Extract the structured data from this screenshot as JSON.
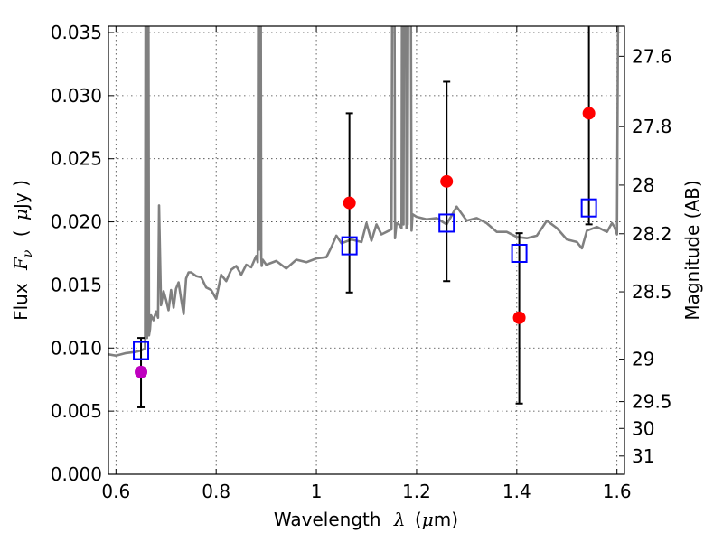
{
  "chart_data": {
    "type": "scatter",
    "xlabel_prefix": "Wavelength",
    "xlabel_symbol": "λ",
    "xlabel_unit_open": "(",
    "xlabel_unit_mu": "μ",
    "xlabel_unit_rest": "m)",
    "ylabel_prefix": "Flux",
    "ylabel_symbol": "F",
    "ylabel_sub": "ν",
    "ylabel_unit_open": "(",
    "ylabel_unit_mu": "μ",
    "ylabel_unit_rest": "Jy )",
    "y2label": "Magnitude (AB)",
    "xlim": [
      0.585,
      1.615
    ],
    "ylim": [
      0.0,
      0.0355
    ],
    "xticks": [
      0.6,
      0.8,
      1.0,
      1.2,
      1.4,
      1.6
    ],
    "xtick_labels": [
      "0.6",
      "0.8",
      "1",
      "1.2",
      "1.4",
      "1.6"
    ],
    "yticks": [
      0.0,
      0.005,
      0.01,
      0.015,
      0.02,
      0.025,
      0.03,
      0.035
    ],
    "ytick_labels": [
      "0.000",
      "0.005",
      "0.010",
      "0.015",
      "0.020",
      "0.025",
      "0.030",
      "0.035"
    ],
    "y2ticks": [
      27.6,
      27.8,
      28.0,
      28.2,
      28.5,
      29.0,
      29.5,
      30.0,
      31.0
    ],
    "y2tick_labels": [
      "27.6",
      "27.8",
      "28",
      "28.2",
      "28.5",
      "29",
      "29.5",
      "30",
      "31"
    ],
    "grid": true,
    "colors": {
      "spectrum": "#808080",
      "observed": "#ff0000",
      "observed_first": "#bf00bf",
      "model": "#0000ff",
      "errorbar": "#000000"
    },
    "observed": [
      {
        "x": 0.65,
        "y": 0.0081,
        "yerr_low": 0.0053,
        "yerr_high": 0.0108
      },
      {
        "x": 1.066,
        "y": 0.0215,
        "yerr_low": 0.0144,
        "yerr_high": 0.0286
      },
      {
        "x": 1.26,
        "y": 0.0232,
        "yerr_low": 0.0153,
        "yerr_high": 0.0311
      },
      {
        "x": 1.405,
        "y": 0.0124,
        "yerr_low": 0.0056,
        "yerr_high": 0.0191
      },
      {
        "x": 1.544,
        "y": 0.0286,
        "yerr_low": 0.0198,
        "yerr_high": 0.0374
      }
    ],
    "model_points": [
      {
        "x": 0.65,
        "y": 0.0098
      },
      {
        "x": 1.066,
        "y": 0.0181
      },
      {
        "x": 1.26,
        "y": 0.0199
      },
      {
        "x": 1.405,
        "y": 0.0175
      },
      {
        "x": 1.544,
        "y": 0.0211
      }
    ],
    "spectrum": {
      "x": [
        0.585,
        0.6,
        0.62,
        0.64,
        0.65,
        0.655,
        0.658,
        0.66,
        0.661,
        0.662,
        0.663,
        0.664,
        0.666,
        0.668,
        0.67,
        0.675,
        0.68,
        0.684,
        0.686,
        0.69,
        0.695,
        0.7,
        0.705,
        0.71,
        0.715,
        0.72,
        0.725,
        0.73,
        0.735,
        0.74,
        0.745,
        0.75,
        0.76,
        0.77,
        0.78,
        0.79,
        0.8,
        0.81,
        0.82,
        0.83,
        0.84,
        0.85,
        0.86,
        0.87,
        0.88,
        0.883,
        0.885,
        0.886,
        0.888,
        0.89,
        0.891,
        0.893,
        0.9,
        0.92,
        0.94,
        0.96,
        0.98,
        1.0,
        1.02,
        1.03,
        1.04,
        1.05,
        1.07,
        1.09,
        1.1,
        1.11,
        1.12,
        1.13,
        1.14,
        1.15,
        1.153,
        1.155,
        1.157,
        1.16,
        1.165,
        1.17,
        1.172,
        1.174,
        1.176,
        1.178,
        1.18,
        1.182,
        1.185,
        1.187,
        1.19,
        1.192,
        1.2,
        1.22,
        1.24,
        1.26,
        1.28,
        1.3,
        1.32,
        1.34,
        1.36,
        1.38,
        1.4,
        1.42,
        1.44,
        1.46,
        1.48,
        1.5,
        1.52,
        1.53,
        1.54,
        1.56,
        1.58,
        1.59,
        1.595,
        1.6,
        1.605,
        1.61,
        1.615
      ],
      "y": [
        0.0095,
        0.0094,
        0.0096,
        0.0097,
        0.0098,
        0.0099,
        0.01,
        0.06,
        0.06,
        0.0108,
        0.06,
        0.06,
        0.011,
        0.0115,
        0.0126,
        0.0122,
        0.0129,
        0.0124,
        0.0213,
        0.0134,
        0.0145,
        0.0138,
        0.013,
        0.0146,
        0.0132,
        0.0147,
        0.0152,
        0.0139,
        0.0127,
        0.0155,
        0.016,
        0.016,
        0.0157,
        0.0156,
        0.0148,
        0.0146,
        0.0139,
        0.0158,
        0.0153,
        0.0162,
        0.0165,
        0.0158,
        0.0166,
        0.0164,
        0.0173,
        0.0168,
        0.06,
        0.0178,
        0.06,
        0.0172,
        0.0165,
        0.017,
        0.0166,
        0.0169,
        0.0163,
        0.017,
        0.0168,
        0.0171,
        0.0172,
        0.018,
        0.0189,
        0.0183,
        0.0186,
        0.0184,
        0.0199,
        0.0185,
        0.0198,
        0.019,
        0.0192,
        0.0194,
        0.06,
        0.06,
        0.0187,
        0.0199,
        0.0198,
        0.0195,
        0.06,
        0.0198,
        0.06,
        0.06,
        0.0195,
        0.0198,
        0.06,
        0.06,
        0.0193,
        0.0206,
        0.0204,
        0.0202,
        0.0203,
        0.0198,
        0.0212,
        0.0201,
        0.0203,
        0.0199,
        0.0192,
        0.0192,
        0.0188,
        0.0187,
        0.0189,
        0.0201,
        0.0195,
        0.0186,
        0.0184,
        0.0179,
        0.0193,
        0.0196,
        0.0192,
        0.0199,
        0.0196,
        0.019,
        0.06,
        0.06,
        0.06
      ]
    }
  }
}
